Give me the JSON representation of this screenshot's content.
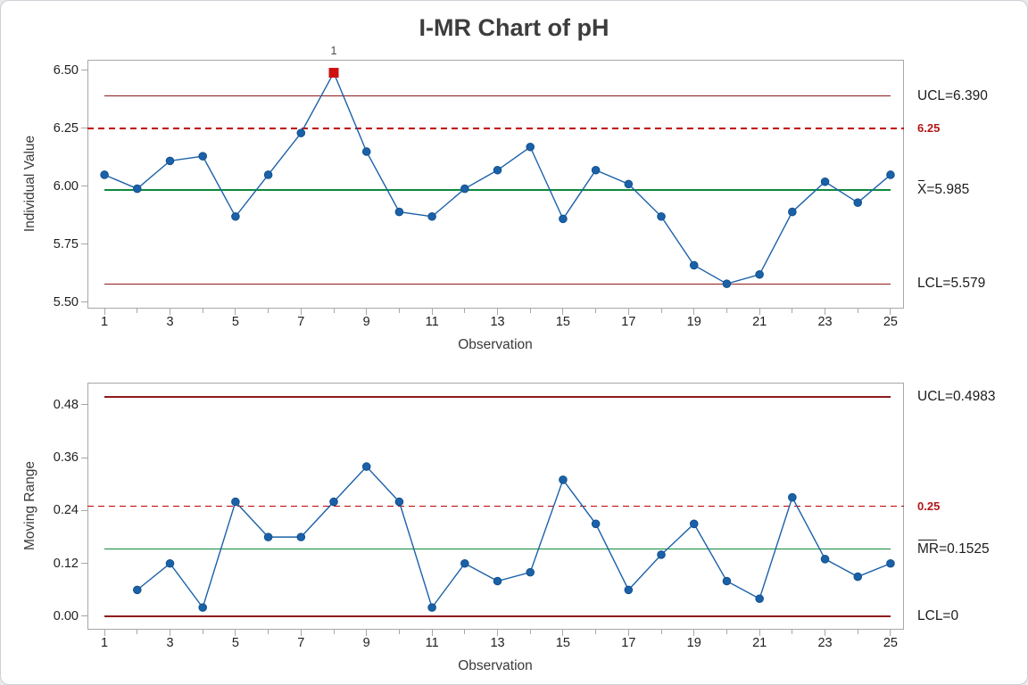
{
  "title": "I-MR Chart of pH",
  "colors": {
    "point_blue": "#1b61a8",
    "point_edge": "#12518f",
    "center_green": "#0e8a3d",
    "limit_red": "#8e1b1b",
    "reference_red": "#c00000",
    "ooc_red": "#ce1010"
  },
  "chart_data": [
    {
      "type": "line",
      "name": "individual-value",
      "ylabel": "Individual Value",
      "xlabel": "Observation",
      "x": [
        1,
        2,
        3,
        4,
        5,
        6,
        7,
        8,
        9,
        10,
        11,
        12,
        13,
        14,
        15,
        16,
        17,
        18,
        19,
        20,
        21,
        22,
        23,
        24,
        25
      ],
      "values": [
        6.05,
        5.99,
        6.11,
        6.13,
        5.87,
        6.05,
        6.23,
        6.49,
        6.15,
        5.89,
        5.87,
        5.99,
        6.07,
        6.17,
        5.86,
        6.07,
        6.01,
        5.87,
        5.66,
        5.58,
        5.62,
        5.89,
        6.02,
        5.93,
        6.05
      ],
      "ucl": 6.39,
      "center": 5.985,
      "lcl": 5.579,
      "reference": 6.25,
      "out_of_control_points": [
        {
          "x": 8,
          "label": "1"
        }
      ],
      "ylim": [
        5.473,
        6.546
      ],
      "xlim": [
        0.48,
        25.41
      ],
      "yticks": [
        {
          "v": 5.5,
          "label": "5.50"
        },
        {
          "v": 5.75,
          "label": "5.75"
        },
        {
          "v": 6.0,
          "label": "6.00"
        },
        {
          "v": 6.25,
          "label": "6.25"
        },
        {
          "v": 6.5,
          "label": "6.50"
        }
      ],
      "xticks": [
        {
          "v": 1,
          "label": "1"
        },
        {
          "v": 3,
          "label": "3"
        },
        {
          "v": 5,
          "label": "5"
        },
        {
          "v": 7,
          "label": "7"
        },
        {
          "v": 9,
          "label": "9"
        },
        {
          "v": 11,
          "label": "11"
        },
        {
          "v": 13,
          "label": "13"
        },
        {
          "v": 15,
          "label": "15"
        },
        {
          "v": 17,
          "label": "17"
        },
        {
          "v": 19,
          "label": "19"
        },
        {
          "v": 21,
          "label": "21"
        },
        {
          "v": 23,
          "label": "23"
        },
        {
          "v": 25,
          "label": "25"
        }
      ],
      "xticks_minor": [
        2,
        4,
        6,
        8,
        10,
        12,
        14,
        16,
        18,
        20,
        22,
        24
      ],
      "lines": [
        {
          "v": 6.39,
          "style": "solid",
          "role": "limit",
          "name": "ucl-line"
        },
        {
          "v": 6.25,
          "style": "dashed",
          "role": "reference",
          "name": "reference-line"
        },
        {
          "v": 5.985,
          "style": "solid",
          "role": "center",
          "name": "center-line"
        },
        {
          "v": 5.579,
          "style": "solid",
          "role": "limit",
          "name": "lcl-line"
        }
      ],
      "annotations": [
        {
          "v": 6.39,
          "barred": "",
          "text": "UCL=6.390",
          "style": "plain",
          "name": "ucl-label"
        },
        {
          "v": 6.25,
          "barred": "",
          "text": "6.25",
          "style": "reference",
          "name": "reference-label"
        },
        {
          "v": 5.985,
          "barred": "X",
          "text": "=5.985",
          "style": "plain",
          "name": "center-label"
        },
        {
          "v": 5.579,
          "barred": "",
          "text": "LCL=5.579",
          "style": "plain",
          "name": "lcl-label"
        }
      ]
    },
    {
      "type": "line",
      "name": "moving-range",
      "ylabel": "Moving Range",
      "xlabel": "Observation",
      "x": [
        2,
        3,
        4,
        5,
        6,
        7,
        8,
        9,
        10,
        11,
        12,
        13,
        14,
        15,
        16,
        17,
        18,
        19,
        20,
        21,
        22,
        23,
        24,
        25
      ],
      "values": [
        0.06,
        0.12,
        0.02,
        0.26,
        0.18,
        0.18,
        0.26,
        0.34,
        0.26,
        0.02,
        0.12,
        0.08,
        0.1,
        0.31,
        0.21,
        0.06,
        0.14,
        0.21,
        0.08,
        0.04,
        0.27,
        0.13,
        0.09,
        0.12
      ],
      "ucl": 0.4983,
      "center": 0.1525,
      "lcl": 0,
      "reference": 0.25,
      "out_of_control_points": [],
      "ylim": [
        -0.0304,
        0.5306
      ],
      "xlim": [
        0.48,
        25.41
      ],
      "yticks": [
        {
          "v": 0.0,
          "label": "0.00"
        },
        {
          "v": 0.12,
          "label": "0.12"
        },
        {
          "v": 0.24,
          "label": "0.24"
        },
        {
          "v": 0.36,
          "label": "0.36"
        },
        {
          "v": 0.48,
          "label": "0.48"
        }
      ],
      "xticks": [
        {
          "v": 1,
          "label": "1"
        },
        {
          "v": 3,
          "label": "3"
        },
        {
          "v": 5,
          "label": "5"
        },
        {
          "v": 7,
          "label": "7"
        },
        {
          "v": 9,
          "label": "9"
        },
        {
          "v": 11,
          "label": "11"
        },
        {
          "v": 13,
          "label": "13"
        },
        {
          "v": 15,
          "label": "15"
        },
        {
          "v": 17,
          "label": "17"
        },
        {
          "v": 19,
          "label": "19"
        },
        {
          "v": 21,
          "label": "21"
        },
        {
          "v": 23,
          "label": "23"
        },
        {
          "v": 25,
          "label": "25"
        }
      ],
      "xticks_minor": [
        2,
        4,
        6,
        8,
        10,
        12,
        14,
        16,
        18,
        20,
        22,
        24
      ],
      "lines": [
        {
          "v": 0.4983,
          "style": "solid",
          "role": "limit",
          "name": "ucl-line"
        },
        {
          "v": 0.25,
          "style": "dashed",
          "role": "reference",
          "name": "reference-line"
        },
        {
          "v": 0.1525,
          "style": "solid",
          "role": "center",
          "name": "center-line"
        },
        {
          "v": 0,
          "style": "solid",
          "role": "limit",
          "name": "lcl-line"
        }
      ],
      "annotations": [
        {
          "v": 0.4983,
          "barred": "",
          "text": "UCL=0.4983",
          "style": "plain",
          "name": "ucl-label"
        },
        {
          "v": 0.25,
          "barred": "",
          "text": "0.25",
          "style": "reference",
          "name": "reference-label"
        },
        {
          "v": 0.1525,
          "barred": "MR",
          "text": "=0.1525",
          "style": "plain",
          "name": "center-label"
        },
        {
          "v": 0,
          "barred": "",
          "text": "LCL=0",
          "style": "plain",
          "name": "lcl-label"
        }
      ]
    }
  ]
}
